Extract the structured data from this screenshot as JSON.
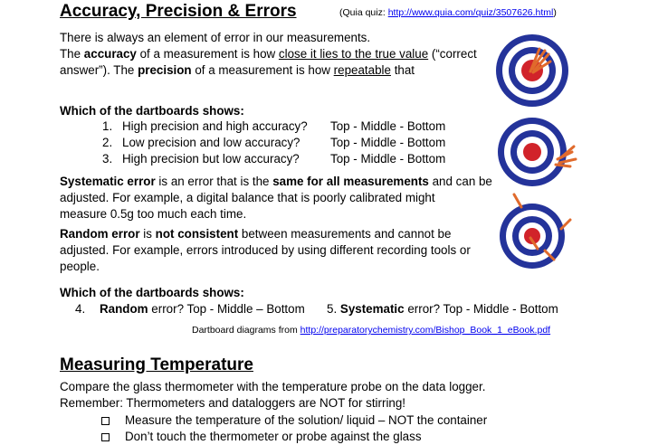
{
  "section1": {
    "title": "Accuracy, Precision & Errors",
    "quiz_prefix": "(Quia quiz: ",
    "quiz_link": "http://www.quia.com/quiz/3507626.html",
    "quiz_suffix": ")",
    "intro": {
      "line1": "There is always an element of error in our measurements.",
      "l2a": "The ",
      "l2b": "accuracy",
      "l2c": " of a measurement is how ",
      "l2d": "close it lies to the true value",
      "l2e": " (“correct",
      "l3a": "answer”). The ",
      "l3b": "precision",
      "l3c": " of a measurement is how ",
      "l3d": "repeatable",
      "l3e": " that",
      "l4": "measurement is."
    },
    "q_heading": "Which of the dartboards shows:",
    "questions": [
      {
        "n": "1.",
        "text": "High precision and high accuracy?",
        "opts": "Top - Middle - Bottom"
      },
      {
        "n": "2.",
        "text": "Low precision and low accuracy?",
        "opts": "Top - Middle - Bottom"
      },
      {
        "n": "3.",
        "text": "High precision but low accuracy?",
        "opts": "Top - Middle - Bottom"
      }
    ],
    "systematic": {
      "a": "Systematic error",
      "b": " is an error that is the ",
      "c": "same for all measurements",
      "d": " and can be",
      "line2": "adjusted. For example, a digital balance that is poorly calibrated might",
      "line3": "measure 0.5g too much each time."
    },
    "random": {
      "a": "Random error",
      "b": " is ",
      "c": "not consistent",
      "d": " between measurements and cannot be",
      "line2": "adjusted. For example, errors introduced by using different recording tools or",
      "line3": "people."
    },
    "q2_heading": "Which of the dartboards shows:",
    "q4": {
      "n": "4.",
      "bold": "Random",
      "text": " error?  Top - Middle – Bottom"
    },
    "q5": {
      "n": "5. ",
      "bold": "Systematic",
      "text": " error?   Top - Middle - Bottom"
    },
    "credit_prefix": "Dartboard diagrams from ",
    "credit_link": "http://preparatorychemistry.com/Bishop_Book_1_eBook.pdf"
  },
  "section2": {
    "title": "Measuring Temperature",
    "line1": "Compare the glass thermometer with the temperature probe on the data logger.",
    "line2": "Remember: Thermometers and dataloggers are NOT for stirring!",
    "checks": [
      "Measure the temperature of the solution/ liquid – NOT the container",
      "Don’t touch the thermometer or probe against the glass"
    ]
  },
  "colors": {
    "ring_blue": "#24339a",
    "ring_red": "#d1232a",
    "dart": "#e06a2c"
  }
}
